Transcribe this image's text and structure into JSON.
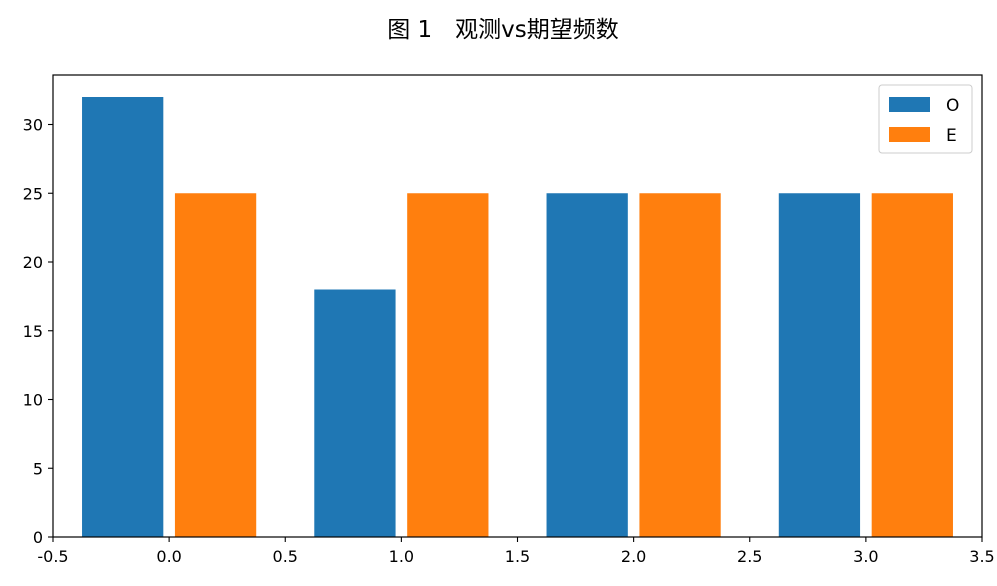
{
  "chart_data": {
    "type": "bar",
    "title": "图 1　观测vs期望频数",
    "xlabel": "",
    "ylabel": "",
    "xlim": [
      -0.5,
      3.5
    ],
    "ylim": [
      0,
      33.6
    ],
    "xticks": [
      -0.5,
      0.0,
      0.5,
      1.0,
      1.5,
      2.0,
      2.5,
      3.0,
      3.5
    ],
    "xtick_labels": [
      "-0.5",
      "0.0",
      "0.5",
      "1.0",
      "1.5",
      "2.0",
      "2.5",
      "3.0",
      "3.5"
    ],
    "yticks": [
      0,
      5,
      10,
      15,
      20,
      25,
      30
    ],
    "ytick_labels": [
      "0",
      "5",
      "10",
      "15",
      "20",
      "25",
      "30"
    ],
    "bar_width": 0.35,
    "grid": false,
    "legend_position": "top-right",
    "series": [
      {
        "name": "O",
        "color": "#1f77b4",
        "x": [
          -0.2,
          0.8,
          1.8,
          2.8
        ],
        "values": [
          32,
          18,
          25,
          25
        ]
      },
      {
        "name": "E",
        "color": "#ff7f0e",
        "x": [
          0.2,
          1.2,
          2.2,
          3.2
        ],
        "values": [
          25,
          25,
          25,
          25
        ]
      }
    ]
  }
}
